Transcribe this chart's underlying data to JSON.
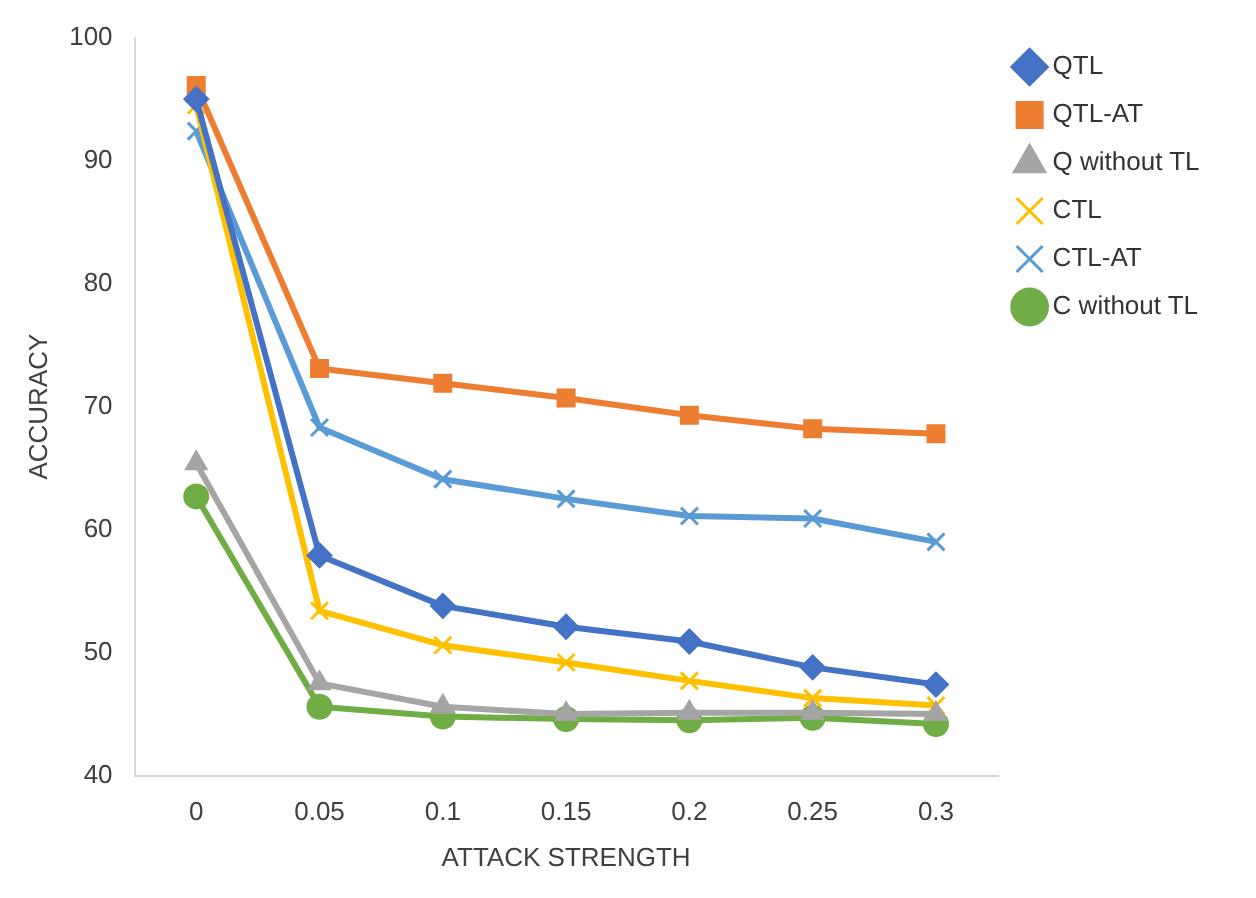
{
  "chart_data": {
    "type": "line",
    "xlabel": "ATTACK STRENGTH",
    "ylabel": "ACCURACY",
    "categories": [
      "0",
      "0.05",
      "0.1",
      "0.15",
      "0.2",
      "0.25",
      "0.3"
    ],
    "series": [
      {
        "name": "QTL",
        "color": "#4472c4",
        "marker": "diamond",
        "values": [
          95.0,
          57.9,
          53.8,
          52.1,
          50.9,
          48.8,
          47.4
        ]
      },
      {
        "name": "QTL-AT",
        "color": "#ed7d31",
        "marker": "square",
        "values": [
          96.1,
          73.1,
          71.9,
          70.7,
          69.3,
          68.2,
          67.8
        ]
      },
      {
        "name": "Q without TL",
        "color": "#a5a5a5",
        "marker": "triangle",
        "values": [
          65.4,
          47.5,
          45.6,
          45.0,
          45.1,
          45.1,
          45.0
        ]
      },
      {
        "name": "CTL",
        "color": "#ffc000",
        "marker": "cross",
        "values": [
          94.5,
          53.4,
          50.6,
          49.2,
          47.7,
          46.3,
          45.7
        ]
      },
      {
        "name": "CTL-AT",
        "color": "#5b9bd5",
        "marker": "cross",
        "values": [
          92.4,
          68.3,
          64.1,
          62.5,
          61.1,
          60.9,
          59.0
        ]
      },
      {
        "name": "C without TL",
        "color": "#70ad47",
        "marker": "circle",
        "values": [
          62.7,
          45.6,
          44.8,
          44.6,
          44.5,
          44.7,
          44.2
        ]
      }
    ],
    "ylim": [
      40,
      100
    ],
    "yticks": [
      40,
      50,
      60,
      70,
      80,
      90,
      100
    ],
    "grid": false,
    "legend": "right",
    "line_style": "solid"
  }
}
